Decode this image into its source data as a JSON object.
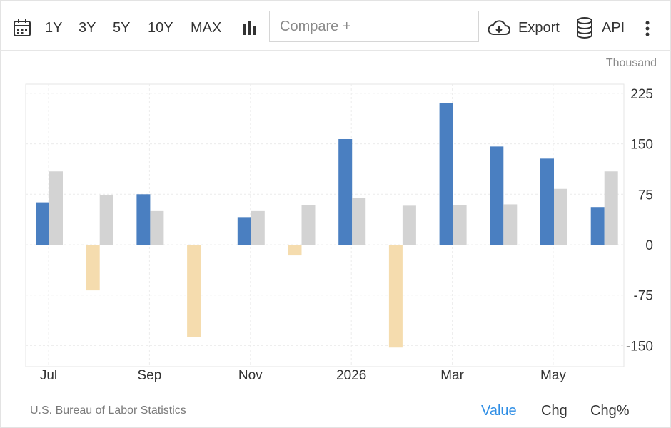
{
  "toolbar": {
    "calendar_icon": "calendar-icon",
    "ranges": [
      "1Y",
      "3Y",
      "5Y",
      "10Y",
      "MAX"
    ],
    "chart_type_icon": "bar-chart-icon",
    "compare_placeholder": "Compare +",
    "export_label": "Export",
    "export_icon": "cloud-download-icon",
    "api_label": "API",
    "api_icon": "database-icon",
    "more_icon": "vertical-dots-icon"
  },
  "unit_label": "Thousand",
  "source": "U.S. Bureau of Labor Statistics",
  "modes": {
    "value": "Value",
    "chg": "Chg",
    "chgpct": "Chg%",
    "active": "Value"
  },
  "colors": {
    "positive": "#4a7fc1",
    "negative": "#f5dcae",
    "comparison": "#d3d3d3",
    "active_mode": "#2f8ee5"
  },
  "chart_data": {
    "type": "bar",
    "ylim": [
      -170,
      240
    ],
    "y_ticks": [
      225,
      150,
      75,
      0,
      -75,
      -150
    ],
    "grid": true,
    "x_tick_labels": [
      {
        "label": "Jul",
        "index": 0
      },
      {
        "label": "Sep",
        "index": 2
      },
      {
        "label": "Nov",
        "index": 4
      },
      {
        "label": "2026",
        "index": 6
      },
      {
        "label": "Mar",
        "index": 8
      },
      {
        "label": "May",
        "index": 10
      }
    ],
    "categories": [
      "Jul 2025",
      "Aug 2025",
      "Sep 2025",
      "Oct 2025",
      "Nov 2025",
      "Dec 2025",
      "Jan 2026",
      "Feb 2026",
      "Mar 2026",
      "Apr 2026",
      "May 2026",
      "Jun 2026"
    ],
    "series": [
      {
        "values": [
          63,
          -68,
          75,
          -137,
          41,
          -16,
          157,
          -153,
          211,
          146,
          128,
          56
        ]
      },
      {
        "values": [
          109,
          74,
          50,
          0,
          50,
          59,
          69,
          58,
          59,
          60,
          83,
          109
        ]
      }
    ]
  }
}
